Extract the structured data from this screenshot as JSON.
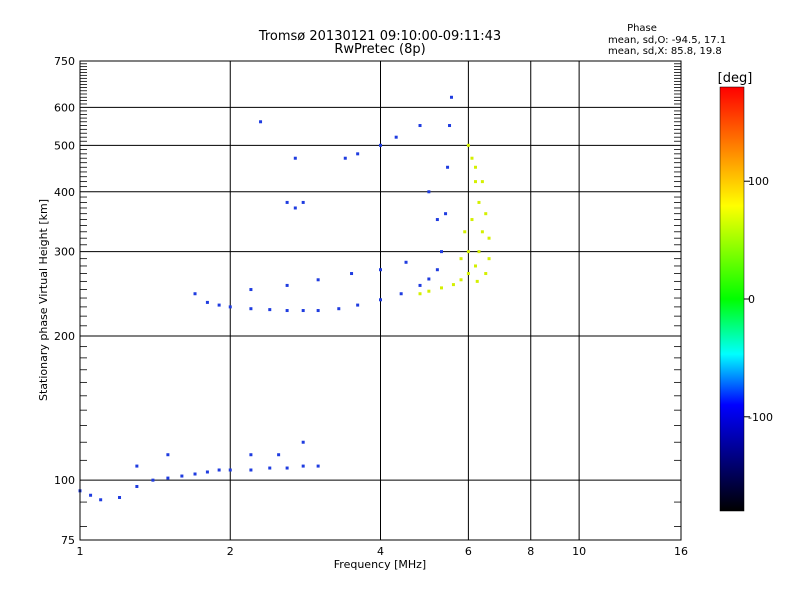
{
  "chart_data": {
    "type": "scatter",
    "title": "Tromsø 20130121 09:10:00-09:11:43",
    "subtitle": "RwPretec (8p)",
    "xlabel": "Frequency [MHz]",
    "ylabel": "Stationary phase Virtual Height [km]",
    "x_scale": "log",
    "y_scale": "log",
    "xlim": [
      1,
      16
    ],
    "ylim": [
      75,
      750
    ],
    "x_ticks": [
      1,
      2,
      4,
      6,
      8,
      10,
      16
    ],
    "x_tick_labels": [
      "1",
      "2",
      "4",
      "6",
      "8",
      "10",
      "16"
    ],
    "x_gridlines": [
      2,
      4,
      6,
      8,
      10
    ],
    "y_ticks": [
      75,
      100,
      200,
      300,
      400,
      500,
      600,
      750
    ],
    "y_tick_labels": [
      "75",
      "100",
      "200",
      "300",
      "400",
      "500",
      "600",
      "750"
    ],
    "y_gridlines": [
      100,
      200,
      300,
      400,
      500,
      600
    ],
    "grid": true,
    "stats": {
      "header": "Phase",
      "line_o": "mean, sd,O: -94.5, 17.1",
      "line_x": "mean, sd,X: 85.8, 19.8"
    },
    "colorbar": {
      "label": "[deg]",
      "range": [
        -180,
        180
      ],
      "ticks": [
        100,
        0,
        -100
      ],
      "tick_labels": [
        "100",
        "0",
        "-100"
      ],
      "colors": [
        "#ff0000",
        "#ffff00",
        "#00ff00",
        "#00ffff",
        "#0000ff",
        "#000000"
      ]
    },
    "series": [
      {
        "mode": "O",
        "color": "#1f3ce0",
        "points": [
          [
            1.0,
            95
          ],
          [
            1.05,
            93
          ],
          [
            1.1,
            91
          ],
          [
            1.2,
            92
          ],
          [
            1.3,
            97
          ],
          [
            1.4,
            100
          ],
          [
            1.5,
            101
          ],
          [
            1.6,
            102
          ],
          [
            1.7,
            103
          ],
          [
            1.8,
            104
          ],
          [
            1.9,
            105
          ],
          [
            2.0,
            105
          ],
          [
            2.2,
            105
          ],
          [
            2.4,
            106
          ],
          [
            2.6,
            106
          ],
          [
            2.8,
            107
          ],
          [
            3.0,
            107
          ],
          [
            1.3,
            107
          ],
          [
            1.5,
            113
          ],
          [
            2.2,
            113
          ],
          [
            2.5,
            113
          ],
          [
            2.8,
            120
          ],
          [
            1.7,
            245
          ],
          [
            1.8,
            235
          ],
          [
            1.9,
            232
          ],
          [
            2.0,
            230
          ],
          [
            2.2,
            228
          ],
          [
            2.4,
            227
          ],
          [
            2.6,
            226
          ],
          [
            2.8,
            226
          ],
          [
            3.0,
            226
          ],
          [
            3.3,
            228
          ],
          [
            3.6,
            232
          ],
          [
            4.0,
            238
          ],
          [
            4.4,
            245
          ],
          [
            4.8,
            255
          ],
          [
            5.0,
            263
          ],
          [
            5.2,
            275
          ],
          [
            5.3,
            300
          ],
          [
            5.4,
            360
          ],
          [
            5.45,
            450
          ],
          [
            5.5,
            550
          ],
          [
            5.55,
            630
          ],
          [
            2.2,
            250
          ],
          [
            2.6,
            255
          ],
          [
            3.0,
            262
          ],
          [
            3.5,
            270
          ],
          [
            4.0,
            275
          ],
          [
            4.5,
            285
          ],
          [
            2.6,
            380
          ],
          [
            2.7,
            370
          ],
          [
            2.8,
            380
          ],
          [
            3.4,
            470
          ],
          [
            3.6,
            480
          ],
          [
            4.0,
            500
          ],
          [
            4.3,
            520
          ],
          [
            4.8,
            550
          ],
          [
            2.3,
            560
          ],
          [
            2.7,
            470
          ],
          [
            5.0,
            400
          ],
          [
            5.2,
            350
          ]
        ]
      },
      {
        "mode": "X",
        "color": "#d4f000",
        "points": [
          [
            4.8,
            245
          ],
          [
            5.0,
            248
          ],
          [
            5.3,
            252
          ],
          [
            5.6,
            256
          ],
          [
            5.8,
            262
          ],
          [
            6.0,
            270
          ],
          [
            6.2,
            280
          ],
          [
            6.3,
            300
          ],
          [
            6.4,
            330
          ],
          [
            6.5,
            360
          ],
          [
            6.3,
            380
          ],
          [
            6.2,
            420
          ],
          [
            6.1,
            470
          ],
          [
            6.0,
            500
          ],
          [
            6.6,
            290
          ],
          [
            6.5,
            270
          ],
          [
            6.0,
            300
          ],
          [
            5.8,
            290
          ],
          [
            5.9,
            330
          ],
          [
            6.1,
            350
          ],
          [
            6.25,
            260
          ],
          [
            6.6,
            320
          ],
          [
            6.4,
            420
          ],
          [
            6.2,
            450
          ]
        ]
      }
    ]
  }
}
